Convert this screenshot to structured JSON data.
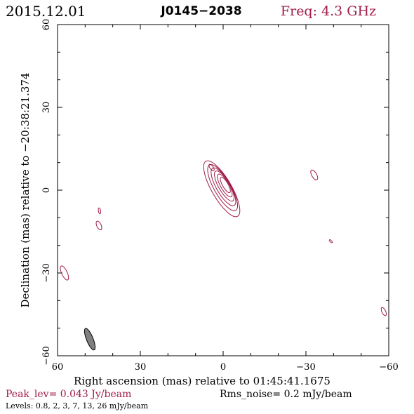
{
  "header": {
    "date": "2015.12.01",
    "source": "J0145−2038",
    "frequency": "Freq: 4.3 GHz"
  },
  "footer": {
    "peak": "Peak_lev=  0.043 Jy/beam",
    "rms": "Rms_noise=   0.2 mJy/beam",
    "levels": "Levels: 0.8,   2,   3,   7,   13,   26 mJy/beam"
  },
  "colors": {
    "contour": "#a01c46",
    "beam_fill": "#808080",
    "axes": "#000000"
  },
  "chart_data": {
    "type": "contour",
    "title": "J0145−2038",
    "xlabel": "Right ascension (mas) relative to 01:45:41.1675",
    "ylabel": "Declination (mas) relative to −20:38:21.374",
    "xlim": [
      60,
      -60
    ],
    "ylim": [
      -60,
      60
    ],
    "x_ticks": [
      60,
      30,
      0,
      -30,
      -60
    ],
    "x_tick_labels": [
      "60",
      "30",
      "0",
      "−30",
      "−60"
    ],
    "y_ticks": [
      -60,
      -30,
      0,
      30,
      60
    ],
    "y_tick_labels": [
      "−60",
      "−30",
      "0",
      "30",
      "60"
    ],
    "peak_jy_per_beam": 0.043,
    "rms_noise_mjy_per_beam": 0.2,
    "levels_mjy_per_beam": [
      0.8,
      2,
      3,
      7,
      13,
      26
    ],
    "core": {
      "ra": 0.5,
      "dec": 0.5,
      "angle_deg": 60,
      "contours": [
        {
          "dx": 0.0,
          "dy": 0.0,
          "a": 11.5,
          "b": 3.6
        },
        {
          "dx": -0.3,
          "dy": 0.4,
          "a": 9.5,
          "b": 3.0
        },
        {
          "dx": -0.6,
          "dy": 0.7,
          "a": 7.8,
          "b": 2.5
        },
        {
          "dx": -0.9,
          "dy": 1.0,
          "a": 6.2,
          "b": 2.0
        },
        {
          "dx": -1.1,
          "dy": 1.2,
          "a": 4.7,
          "b": 1.5
        },
        {
          "dx": -1.3,
          "dy": 1.4,
          "a": 3.2,
          "b": 1.0
        }
      ]
    },
    "features": [
      {
        "ra": -33.0,
        "dec": 5.5,
        "a": 2.0,
        "b": 0.9,
        "angle_deg": 60
      },
      {
        "ra": -25.5,
        "dec": 7.0,
        "a": 0.0,
        "b": 0.0,
        "angle_deg": 0
      },
      {
        "ra": -39.0,
        "dec": -18.5,
        "a": 0.7,
        "b": 0.3,
        "angle_deg": 45
      },
      {
        "ra": 44.8,
        "dec": -7.5,
        "a": 1.1,
        "b": 0.4,
        "angle_deg": 80
      },
      {
        "ra": 45.0,
        "dec": -12.8,
        "a": 1.7,
        "b": 0.8,
        "angle_deg": 65
      },
      {
        "ra": 57.5,
        "dec": -30.0,
        "a": 2.8,
        "b": 1.0,
        "angle_deg": 65
      },
      {
        "ra": -58.2,
        "dec": -44.0,
        "a": 1.6,
        "b": 0.7,
        "angle_deg": 65
      },
      {
        "ra": 4.2,
        "dec": 8.2,
        "a": 1.4,
        "b": 0.6,
        "angle_deg": 55
      }
    ],
    "beam": {
      "ra": 48.3,
      "dec": -54.0,
      "a": 4.2,
      "b": 1.2,
      "angle_deg": 68
    }
  }
}
